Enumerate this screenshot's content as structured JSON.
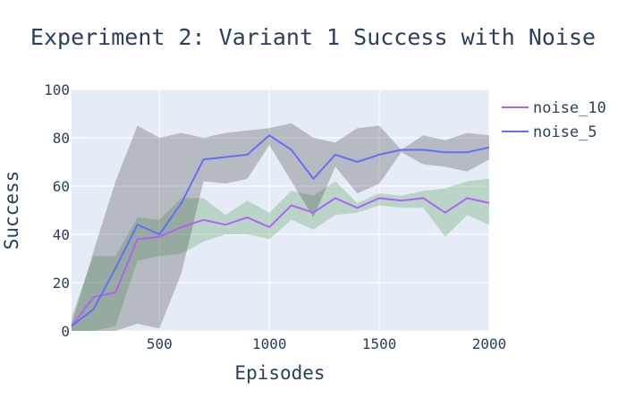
{
  "chart_data": {
    "type": "line",
    "title": "Experiment 2: Variant 1 Success with Noise",
    "xlabel": "Episodes",
    "ylabel": "Success",
    "xlim": [
      100,
      2000
    ],
    "ylim": [
      0,
      100
    ],
    "xticks": [
      500,
      1000,
      1500,
      2000
    ],
    "yticks": [
      0,
      20,
      40,
      60,
      80,
      100
    ],
    "grid": true,
    "legend_position": "top-right",
    "plot_bgcolor": "#e5ecf6",
    "x": [
      100,
      200,
      300,
      400,
      500,
      600,
      700,
      800,
      900,
      1000,
      1100,
      1200,
      1300,
      1400,
      1500,
      1600,
      1700,
      1800,
      1900,
      2000
    ],
    "series": [
      {
        "name": "noise_10",
        "color": "#ab63fa",
        "band_color": "rgba(60,140,60,0.25)",
        "values": [
          2,
          14,
          16,
          38,
          39,
          43,
          46,
          44,
          47,
          43,
          52,
          49,
          55,
          51,
          55,
          54,
          55,
          49,
          55,
          53
        ],
        "upper": [
          6,
          31,
          31,
          47,
          46,
          55,
          55,
          48,
          54,
          49,
          58,
          56,
          62,
          53,
          57,
          56,
          58,
          59,
          62,
          63
        ],
        "lower": [
          0,
          0,
          2,
          29,
          31,
          32,
          37,
          40,
          40,
          38,
          46,
          42,
          48,
          49,
          52,
          51,
          51,
          39,
          48,
          44
        ]
      },
      {
        "name": "noise_5",
        "color": "#636efa",
        "band_color": "rgba(60,60,60,0.28)",
        "values": [
          2,
          9,
          26,
          44,
          40,
          53,
          71,
          72,
          73,
          81,
          75,
          63,
          73,
          70,
          73,
          75,
          75,
          74,
          74,
          76
        ],
        "upper": [
          3,
          33,
          62,
          85,
          80,
          82,
          80,
          82,
          83,
          84,
          86,
          80,
          78,
          84,
          85,
          75,
          81,
          79,
          82,
          81
        ],
        "lower": [
          0,
          0,
          0,
          3,
          1,
          24,
          62,
          61,
          63,
          77,
          62,
          47,
          68,
          57,
          61,
          74,
          69,
          68,
          66,
          71
        ]
      }
    ]
  }
}
